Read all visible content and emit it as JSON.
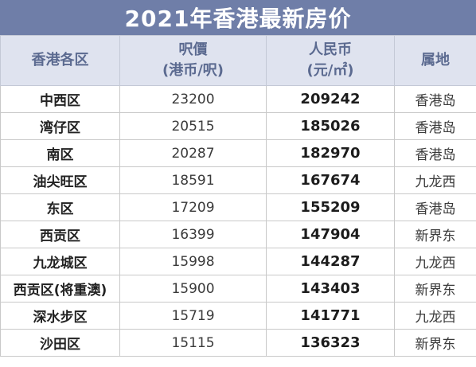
{
  "title": "2021年香港最新房价",
  "headers": {
    "district": "香港各区",
    "price_per_foot_line1": "呎價",
    "price_per_foot_line2": "(港币/呎)",
    "price_per_sqm_line1": "人民币",
    "price_per_sqm_line2": "(元/㎡)",
    "region": "属地"
  },
  "rows": [
    {
      "district": "中西区",
      "price_per_foot": "23200",
      "price_per_sqm": "209242",
      "region": "香港岛"
    },
    {
      "district": "湾仔区",
      "price_per_foot": "20515",
      "price_per_sqm": "185026",
      "region": "香港岛"
    },
    {
      "district": "南区",
      "price_per_foot": "20287",
      "price_per_sqm": "182970",
      "region": "香港岛"
    },
    {
      "district": "油尖旺区",
      "price_per_foot": "18591",
      "price_per_sqm": "167674",
      "region": "九龙西"
    },
    {
      "district": "东区",
      "price_per_foot": "17209",
      "price_per_sqm": "155209",
      "region": "香港岛"
    },
    {
      "district": "西贡区",
      "price_per_foot": "16399",
      "price_per_sqm": "147904",
      "region": "新界东"
    },
    {
      "district": "九龙城区",
      "price_per_foot": "15998",
      "price_per_sqm": "144287",
      "region": "九龙西"
    },
    {
      "district": "西贡区(将重澳)",
      "price_per_foot": "15900",
      "price_per_sqm": "143403",
      "region": "新界东"
    },
    {
      "district": "深水步区",
      "price_per_foot": "15719",
      "price_per_sqm": "141771",
      "region": "九龙西"
    },
    {
      "district": "沙田区",
      "price_per_foot": "15115",
      "price_per_sqm": "136323",
      "region": "新界东"
    }
  ]
}
